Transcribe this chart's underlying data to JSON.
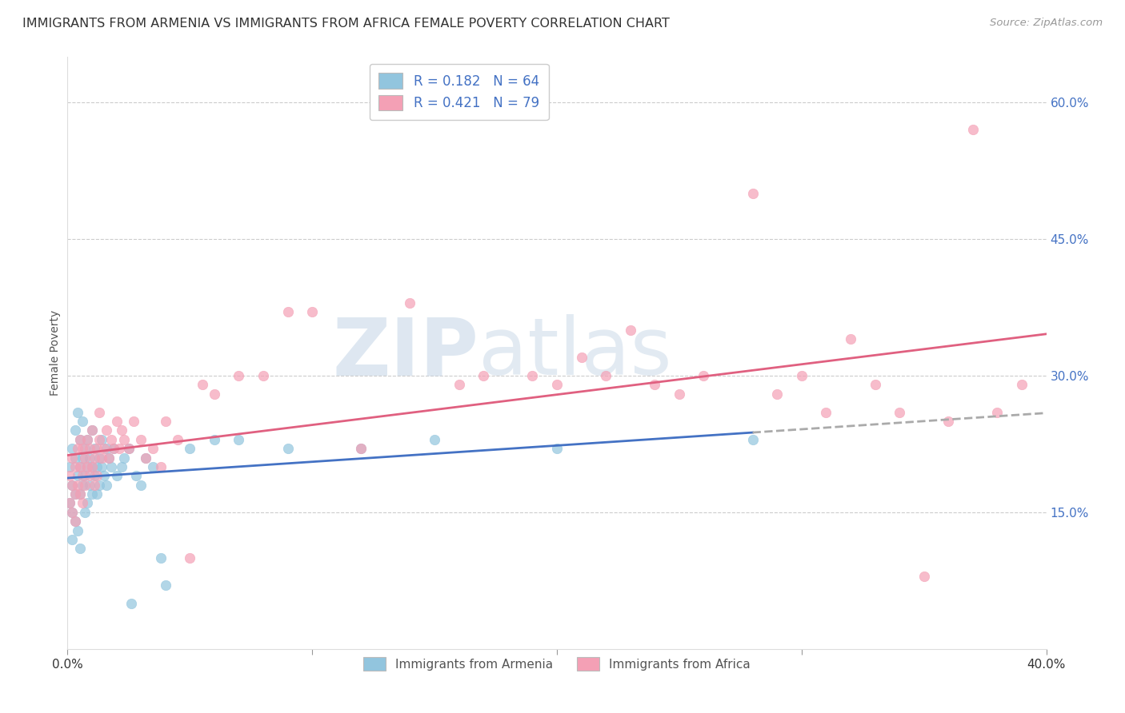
{
  "title": "IMMIGRANTS FROM ARMENIA VS IMMIGRANTS FROM AFRICA FEMALE POVERTY CORRELATION CHART",
  "source": "Source: ZipAtlas.com",
  "ylabel": "Female Poverty",
  "xlim": [
    0.0,
    0.4
  ],
  "ylim": [
    0.0,
    0.65
  ],
  "y_ticks_right": [
    0.15,
    0.3,
    0.45,
    0.6
  ],
  "y_tick_labels_right": [
    "15.0%",
    "30.0%",
    "45.0%",
    "60.0%"
  ],
  "legend_r1": "R = 0.182",
  "legend_n1": "N = 64",
  "legend_r2": "R = 0.421",
  "legend_n2": "N = 79",
  "legend_label1": "Immigrants from Armenia",
  "legend_label2": "Immigrants from Africa",
  "color_armenia": "#92c5de",
  "color_africa": "#f4a0b5",
  "color_line_armenia": "#4472c4",
  "color_line_africa": "#e06080",
  "color_legend_text": "#4472c4",
  "watermark_zip": "ZIP",
  "watermark_atlas": "atlas",
  "armenia_x": [
    0.001,
    0.001,
    0.002,
    0.002,
    0.002,
    0.002,
    0.003,
    0.003,
    0.003,
    0.003,
    0.004,
    0.004,
    0.004,
    0.005,
    0.005,
    0.005,
    0.005,
    0.006,
    0.006,
    0.006,
    0.007,
    0.007,
    0.007,
    0.008,
    0.008,
    0.008,
    0.009,
    0.009,
    0.01,
    0.01,
    0.01,
    0.011,
    0.011,
    0.012,
    0.012,
    0.013,
    0.013,
    0.014,
    0.014,
    0.015,
    0.016,
    0.016,
    0.017,
    0.018,
    0.019,
    0.02,
    0.022,
    0.023,
    0.025,
    0.026,
    0.028,
    0.03,
    0.032,
    0.035,
    0.038,
    0.04,
    0.05,
    0.06,
    0.07,
    0.09,
    0.12,
    0.15,
    0.2,
    0.28
  ],
  "armenia_y": [
    0.2,
    0.16,
    0.22,
    0.18,
    0.15,
    0.12,
    0.24,
    0.21,
    0.17,
    0.14,
    0.26,
    0.19,
    0.13,
    0.23,
    0.2,
    0.17,
    0.11,
    0.25,
    0.21,
    0.18,
    0.22,
    0.19,
    0.15,
    0.23,
    0.2,
    0.16,
    0.21,
    0.18,
    0.24,
    0.2,
    0.17,
    0.22,
    0.19,
    0.2,
    0.17,
    0.21,
    0.18,
    0.23,
    0.2,
    0.19,
    0.22,
    0.18,
    0.21,
    0.2,
    0.22,
    0.19,
    0.2,
    0.21,
    0.22,
    0.05,
    0.19,
    0.18,
    0.21,
    0.2,
    0.1,
    0.07,
    0.22,
    0.23,
    0.23,
    0.22,
    0.22,
    0.23,
    0.22,
    0.23
  ],
  "africa_x": [
    0.001,
    0.001,
    0.002,
    0.002,
    0.002,
    0.003,
    0.003,
    0.003,
    0.004,
    0.004,
    0.005,
    0.005,
    0.005,
    0.006,
    0.006,
    0.006,
    0.007,
    0.007,
    0.008,
    0.008,
    0.009,
    0.009,
    0.01,
    0.01,
    0.011,
    0.011,
    0.012,
    0.012,
    0.013,
    0.013,
    0.014,
    0.015,
    0.016,
    0.017,
    0.018,
    0.019,
    0.02,
    0.021,
    0.022,
    0.023,
    0.025,
    0.027,
    0.03,
    0.032,
    0.035,
    0.038,
    0.04,
    0.045,
    0.05,
    0.055,
    0.06,
    0.07,
    0.08,
    0.09,
    0.1,
    0.12,
    0.14,
    0.16,
    0.17,
    0.19,
    0.2,
    0.21,
    0.22,
    0.23,
    0.24,
    0.25,
    0.26,
    0.28,
    0.29,
    0.3,
    0.31,
    0.32,
    0.33,
    0.34,
    0.35,
    0.36,
    0.37,
    0.38,
    0.39
  ],
  "africa_y": [
    0.19,
    0.16,
    0.21,
    0.18,
    0.15,
    0.2,
    0.17,
    0.14,
    0.22,
    0.18,
    0.2,
    0.17,
    0.23,
    0.19,
    0.16,
    0.22,
    0.21,
    0.18,
    0.23,
    0.2,
    0.19,
    0.22,
    0.2,
    0.24,
    0.21,
    0.18,
    0.22,
    0.19,
    0.23,
    0.26,
    0.21,
    0.22,
    0.24,
    0.21,
    0.23,
    0.22,
    0.25,
    0.22,
    0.24,
    0.23,
    0.22,
    0.25,
    0.23,
    0.21,
    0.22,
    0.2,
    0.25,
    0.23,
    0.1,
    0.29,
    0.28,
    0.3,
    0.3,
    0.37,
    0.37,
    0.22,
    0.38,
    0.29,
    0.3,
    0.3,
    0.29,
    0.32,
    0.3,
    0.35,
    0.29,
    0.28,
    0.3,
    0.5,
    0.28,
    0.3,
    0.26,
    0.34,
    0.29,
    0.26,
    0.08,
    0.25,
    0.57,
    0.26,
    0.29
  ],
  "armenia_line_start_x": 0.0,
  "armenia_line_end_x": 0.28,
  "africa_line_end_x": 0.4,
  "dashed_line_start_x": 0.28,
  "dashed_line_end_x": 0.4
}
